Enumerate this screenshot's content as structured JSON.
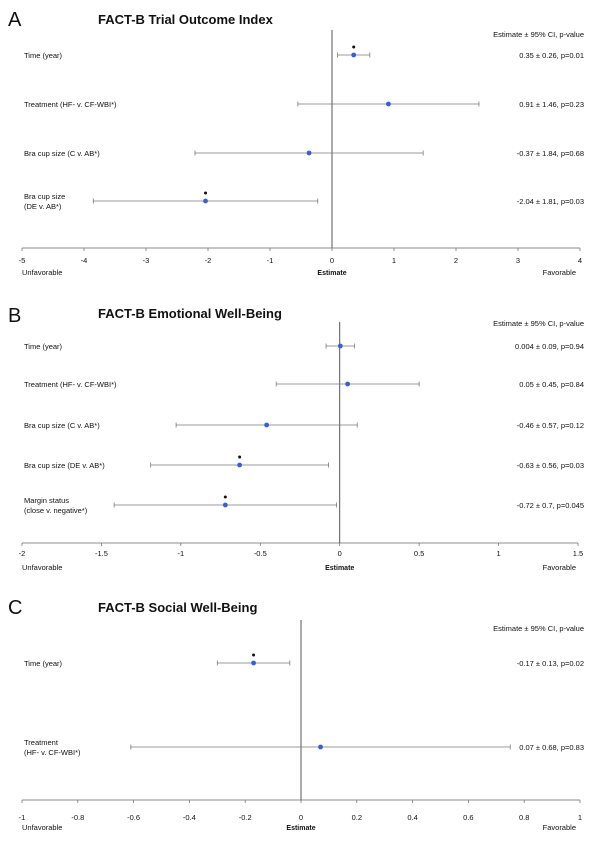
{
  "chart_data": [
    {
      "type": "forest",
      "letter": "A",
      "title": "FACT-B Trial Outcome Index",
      "header": "Estimate ± 95% CI, p-value",
      "xlabel": "Estimate",
      "left_label": "Unfavorable",
      "right_label": "Favorable",
      "xlim": [
        -5,
        4
      ],
      "ticks": [
        "-5",
        "-4",
        "-3",
        "-2",
        "-1",
        "0",
        "1",
        "2",
        "3",
        "4"
      ],
      "rows": [
        {
          "label": [
            "Time (year)"
          ],
          "estimate": 0.35,
          "lower": 0.09,
          "upper": 0.61,
          "significant": true,
          "text": "0.35 ± 0.26, p=0.01"
        },
        {
          "label": [
            "Treatment (HF- v. CF-WBI*)"
          ],
          "estimate": 0.91,
          "lower": -0.55,
          "upper": 2.37,
          "significant": false,
          "text": "0.91 ± 1.46, p=0.23"
        },
        {
          "label": [
            "Bra cup size (C v. AB*)"
          ],
          "estimate": -0.37,
          "lower": -2.21,
          "upper": 1.47,
          "significant": false,
          "text": "-0.37 ± 1.84, p=0.68"
        },
        {
          "label": [
            "Bra cup size",
            "(DE v. AB*)"
          ],
          "estimate": -2.04,
          "lower": -3.85,
          "upper": -0.23,
          "significant": true,
          "text": "-2.04 ± 1.81, p=0.03"
        }
      ]
    },
    {
      "type": "forest",
      "letter": "B",
      "title": "FACT-B Emotional Well-Being",
      "header": "Estimate ± 95% CI, p-value",
      "xlabel": "Estimate",
      "left_label": "Unfavorable",
      "right_label": "Favorable",
      "xlim": [
        -2,
        1.5
      ],
      "ticks": [
        "-2",
        "-1.5",
        "-1",
        "-0.5",
        "0",
        "0.5",
        "1",
        "1.5"
      ],
      "rows": [
        {
          "label": [
            "Time (year)"
          ],
          "estimate": 0.004,
          "lower": -0.086,
          "upper": 0.094,
          "significant": false,
          "text": "0.004 ± 0.09, p=0.94"
        },
        {
          "label": [
            "Treatment (HF- v. CF-WBI*)"
          ],
          "estimate": 0.05,
          "lower": -0.4,
          "upper": 0.5,
          "significant": false,
          "text": "0.05 ± 0.45, p=0.84"
        },
        {
          "label": [
            "Bra cup size (C v. AB*)"
          ],
          "estimate": -0.46,
          "lower": -1.03,
          "upper": 0.11,
          "significant": false,
          "text": "-0.46 ± 0.57, p=0.12"
        },
        {
          "label": [
            "Bra cup size (DE v. AB*)"
          ],
          "estimate": -0.63,
          "lower": -1.19,
          "upper": -0.07,
          "significant": true,
          "text": "-0.63 ± 0.56, p=0.03"
        },
        {
          "label": [
            "Margin status",
            "(close v. negative*)"
          ],
          "estimate": -0.72,
          "lower": -1.42,
          "upper": -0.02,
          "significant": true,
          "text": "-0.72 ± 0.7, p=0.045"
        }
      ]
    },
    {
      "type": "forest",
      "letter": "C",
      "title": "FACT-B Social Well-Being",
      "header": "Estimate ± 95% CI, p-value",
      "xlabel": "Estimate",
      "left_label": "Unfavorable",
      "right_label": "Favorable",
      "xlim": [
        -1,
        1
      ],
      "ticks": [
        "-1",
        "-0.8",
        "-0.6",
        "-0.4",
        "-0.2",
        "0",
        "0.2",
        "0.4",
        "0.6",
        "0.8",
        "1"
      ],
      "rows": [
        {
          "label": [
            "Time (year)"
          ],
          "estimate": -0.17,
          "lower": -0.3,
          "upper": -0.04,
          "significant": true,
          "text": "-0.17 ± 0.13, p=0.02"
        },
        {
          "label": [
            "Treatment",
            "(HF- v. CF-WBI*)"
          ],
          "estimate": 0.07,
          "lower": -0.61,
          "upper": 0.75,
          "significant": false,
          "text": "0.07 ± 0.68, p=0.83"
        }
      ]
    }
  ]
}
